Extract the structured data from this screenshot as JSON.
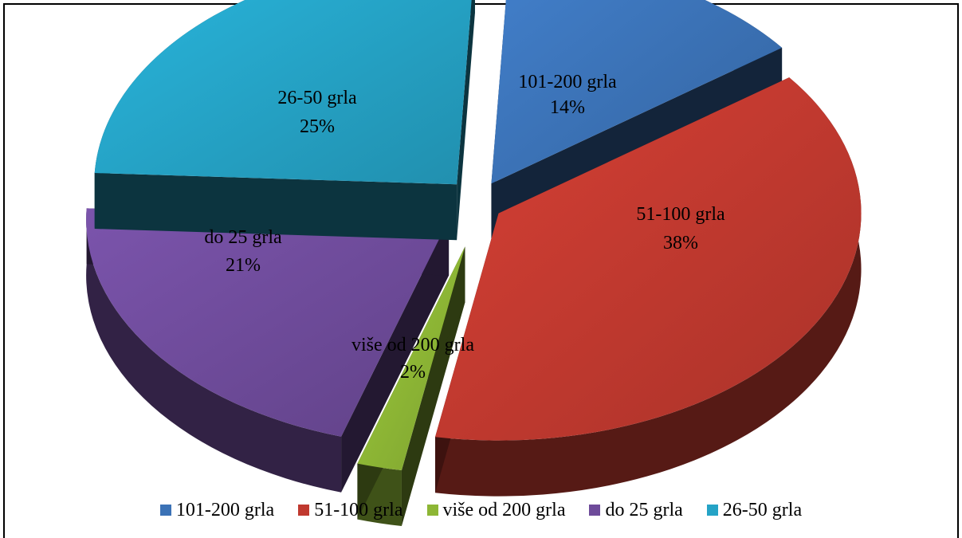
{
  "chart_data": {
    "type": "pie",
    "three_d": true,
    "exploded": true,
    "legend_position": "bottom",
    "slices": [
      {
        "label": "101-200 grla",
        "percent_label": "14%",
        "value": 14,
        "color": "#3B72B6"
      },
      {
        "label": "51-100 grla",
        "percent_label": "38%",
        "value": 38,
        "color": "#C0392F"
      },
      {
        "label": "više od 200 grla",
        "percent_label": "2%",
        "value": 2,
        "color": "#8DB635"
      },
      {
        "label": "do 25 grla",
        "percent_label": "21%",
        "value": 21,
        "color": "#6E4B9A"
      },
      {
        "label": "26-50 grla",
        "percent_label": "25%",
        "value": 25,
        "color": "#25A3C6"
      }
    ]
  }
}
